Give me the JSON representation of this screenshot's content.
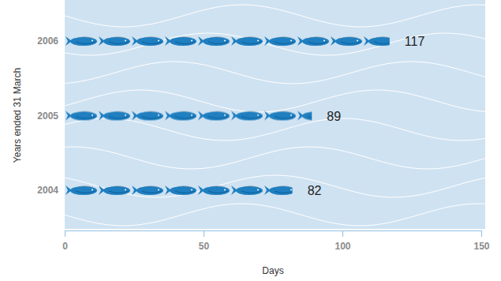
{
  "chart_data": {
    "type": "bar",
    "orientation": "horizontal",
    "categories": [
      "2004",
      "2005",
      "2006"
    ],
    "values": [
      82,
      89,
      117
    ],
    "color": "#1f7fc0",
    "xlabel": "Days",
    "ylabel": "Years ended 31 March",
    "xlim": [
      0,
      150
    ],
    "xticks": [
      0,
      50,
      100,
      150
    ],
    "data_labels": true,
    "grid": false
  }
}
